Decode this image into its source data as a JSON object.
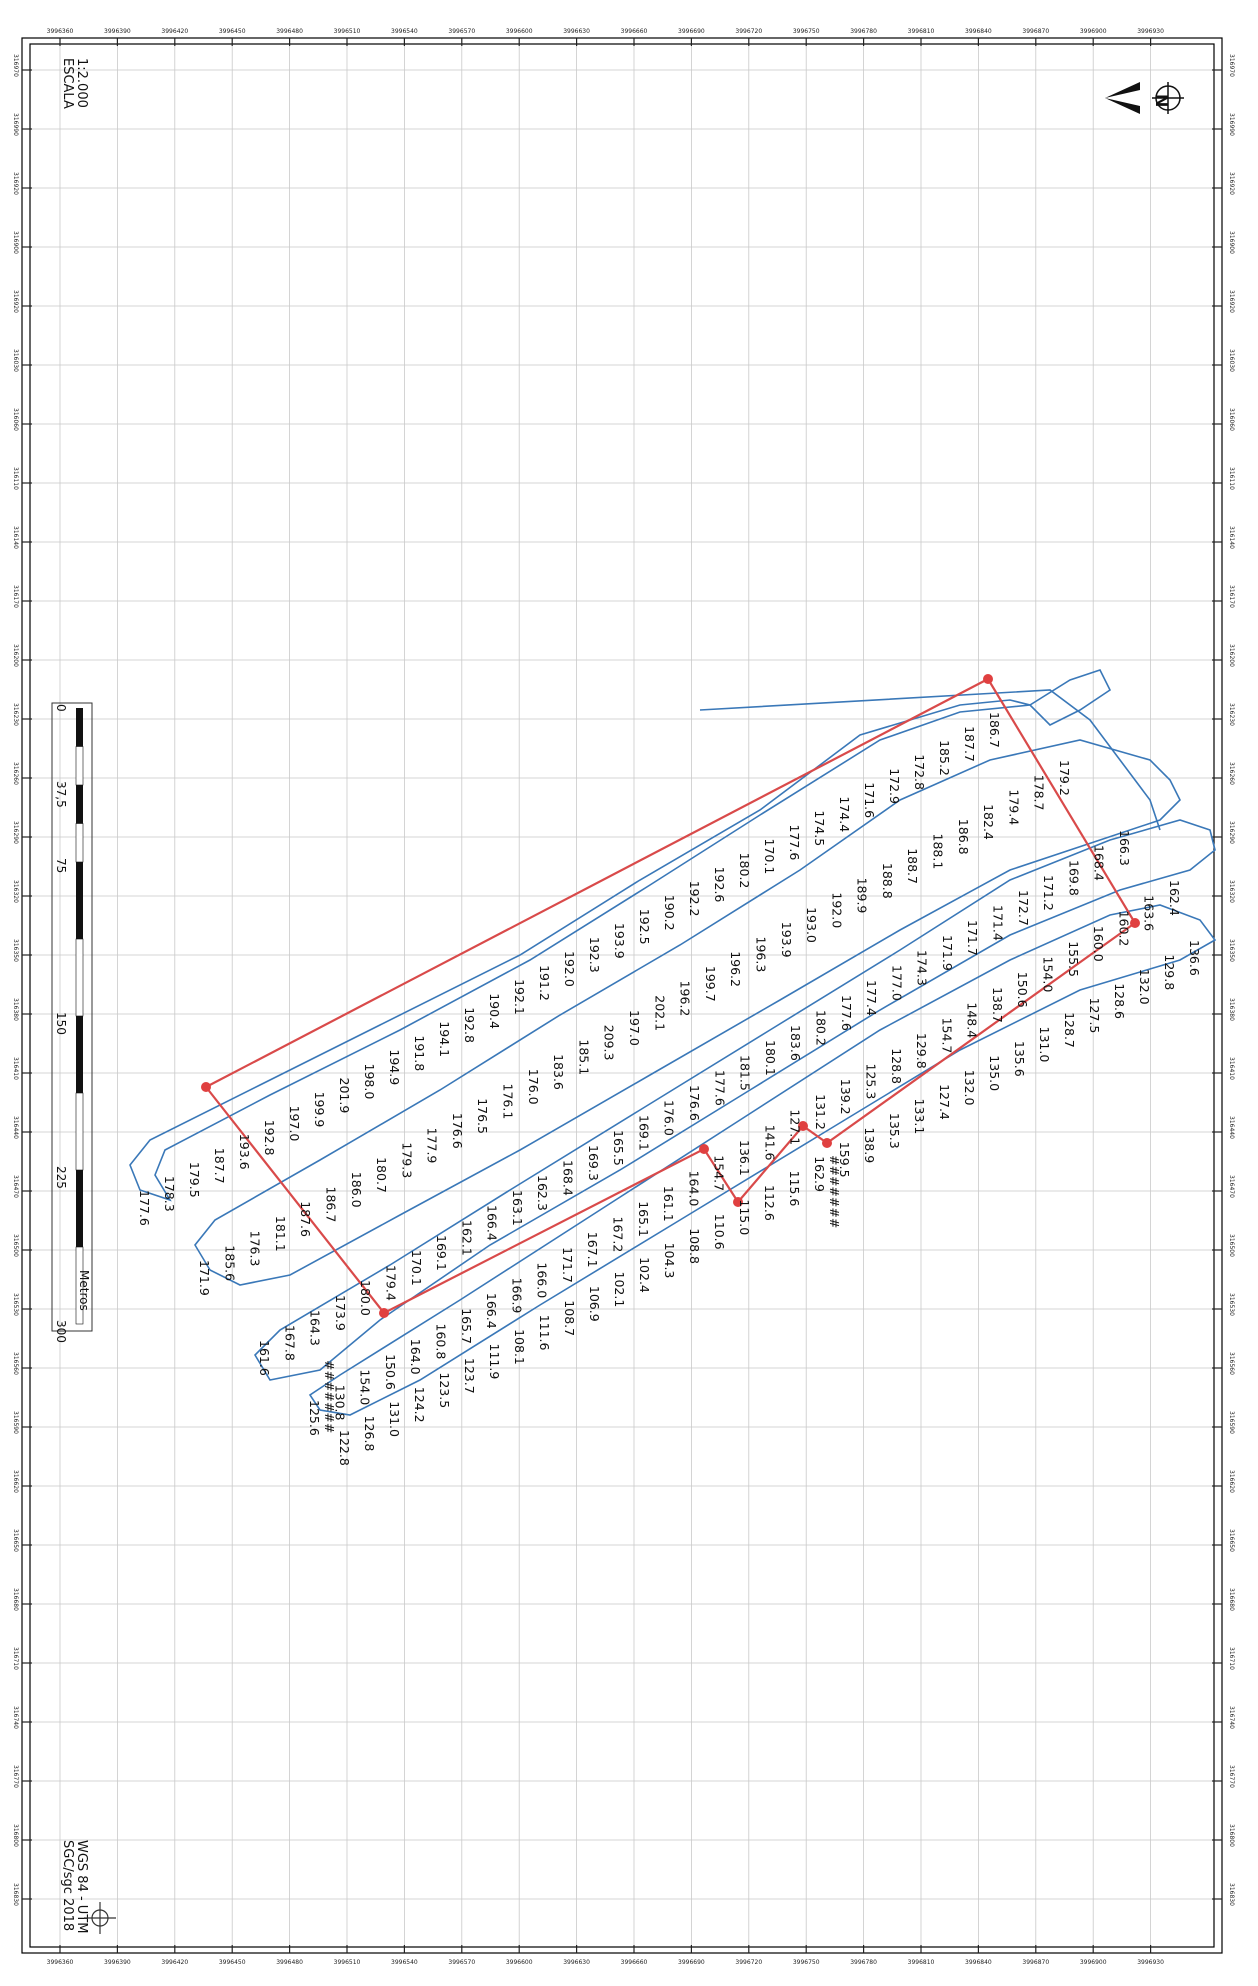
{
  "map": {
    "scale_text": "1:2.000",
    "scale_label": "ESCALA",
    "datum_text": "WGS 84 - UTM",
    "credit_text": "SGC/sgc 2018",
    "hash_label": "#######",
    "north_icon": "north-arrow-icon",
    "logo_icon": "compass-rose-icon"
  },
  "colors": {
    "track": "#3a78b8",
    "boundary": "#d94a4a",
    "grid": "#c9c9c9"
  },
  "scale_bar": {
    "unit": "Metros",
    "labels": [
      "0",
      "37,5",
      "75",
      "150",
      "225",
      "300"
    ]
  },
  "top_coords": [
    "3996360",
    "3996390",
    "3996420",
    "3996450",
    "3996480",
    "3996510",
    "3996540",
    "3996570",
    "3996600",
    "3996630",
    "3996660",
    "3996690",
    "3996720",
    "3996750",
    "3996780",
    "3996810",
    "3996840",
    "3996870",
    "3996900",
    "3996930"
  ],
  "side_coords": [
    "316970",
    "316990",
    "316920",
    "316900",
    "316920",
    "316030",
    "316060",
    "316110",
    "316140",
    "316170",
    "316200",
    "316230",
    "316260",
    "316290",
    "316320",
    "316350",
    "316380",
    "316410",
    "316440",
    "316470",
    "316500",
    "316530",
    "316560",
    "316590",
    "316620",
    "316650",
    "316680",
    "316710",
    "316740",
    "316770",
    "316800",
    "316830"
  ],
  "elevations": [
    "186.7",
    "187.7",
    "185.2",
    "172.8",
    "172.9",
    "171.6",
    "174.4",
    "174.5",
    "177.6",
    "170.1",
    "180.2",
    "192.6",
    "192.2",
    "190.2",
    "192.5",
    "193.9",
    "192.3",
    "192.0",
    "191.2",
    "192.1",
    "190.4",
    "192.8",
    "194.1",
    "191.8",
    "194.9",
    "198.0",
    "201.9",
    "199.9",
    "197.0",
    "192.8",
    "193.6",
    "187.7",
    "179.5",
    "178.3",
    "177.6",
    "179.2",
    "178.7",
    "179.4",
    "182.4",
    "186.8",
    "188.1",
    "188.7",
    "188.8",
    "189.9",
    "192.0",
    "193.0",
    "193.9",
    "196.3",
    "196.2",
    "199.7",
    "196.2",
    "202.1",
    "197.0",
    "209.3",
    "185.1",
    "183.6",
    "176.0",
    "176.1",
    "176.5",
    "176.6",
    "177.9",
    "179.3",
    "180.7",
    "186.0",
    "186.7",
    "187.6",
    "181.1",
    "176.3",
    "185.6",
    "171.9",
    "166.3",
    "168.4",
    "169.8",
    "171.2",
    "172.7",
    "171.4",
    "171.7",
    "171.9",
    "174.3",
    "177.0",
    "177.4",
    "177.6",
    "180.2",
    "183.6",
    "180.1",
    "181.5",
    "177.6",
    "176.6",
    "176.0",
    "169.1",
    "165.5",
    "169.3",
    "168.4",
    "162.3",
    "163.1",
    "166.4",
    "162.1",
    "169.1",
    "170.1",
    "179.4",
    "180.0",
    "173.9",
    "164.3",
    "167.8",
    "161.6",
    "162.4",
    "163.6",
    "160.2",
    "160.0",
    "155.5",
    "154.0",
    "150.6",
    "138.7",
    "148.4",
    "154.7",
    "129.8",
    "128.8",
    "125.3",
    "139.2",
    "131.2",
    "127.1",
    "141.6",
    "136.1",
    "154.7",
    "164.0",
    "161.1",
    "165.1",
    "167.2",
    "167.1",
    "171.7",
    "166.0",
    "166.9",
    "166.4",
    "165.7",
    "160.8",
    "164.0",
    "150.6",
    "154.0",
    "130.8",
    "125.6",
    "136.6",
    "129.8",
    "132.0",
    "128.6",
    "127.5",
    "128.7",
    "131.0",
    "135.6",
    "135.0",
    "132.0",
    "127.4",
    "133.1",
    "135.3",
    "138.9",
    "159.5",
    "162.9",
    "115.6",
    "112.6",
    "115.0",
    "110.6",
    "108.8",
    "104.3",
    "102.4",
    "102.1",
    "106.9",
    "108.7",
    "111.6",
    "108.1",
    "111.9",
    "123.7",
    "123.5",
    "124.2",
    "131.0",
    "126.8",
    "122.8"
  ]
}
